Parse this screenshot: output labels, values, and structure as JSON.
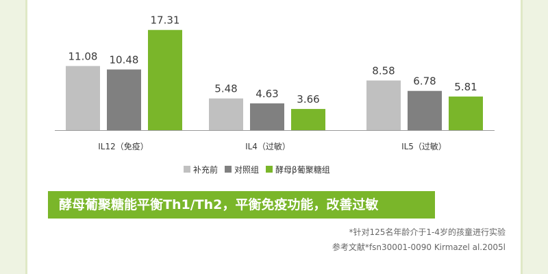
{
  "chart_data": {
    "type": "bar",
    "categories": [
      "IL12（免疫）",
      "IL4（过敏）",
      "IL5（过敏）"
    ],
    "series": [
      {
        "name": "补充前",
        "color": "#c0c0c0",
        "values": [
          11.08,
          5.48,
          8.58
        ]
      },
      {
        "name": "对照组",
        "color": "#808080",
        "values": [
          10.48,
          4.63,
          6.78
        ]
      },
      {
        "name": "酵母β葡聚糖组",
        "color": "#7ab62a",
        "values": [
          17.31,
          3.66,
          5.81
        ]
      }
    ],
    "value_labels": [
      [
        "11.08",
        "5.48",
        "8.58"
      ],
      [
        "10.48",
        "4.63",
        "6.78"
      ],
      [
        "17.31",
        "3.66",
        "5.81"
      ]
    ],
    "ylim": [
      0,
      18
    ]
  },
  "headline": "酵母葡聚糖能平衡Th1/Th2，平衡免疫功能，改善过敏",
  "notes": [
    "*针对125名年龄介于1-4岁的孩童进行实验",
    "参考文献*fsn30001-0090 Kirmazel al.2005l"
  ]
}
